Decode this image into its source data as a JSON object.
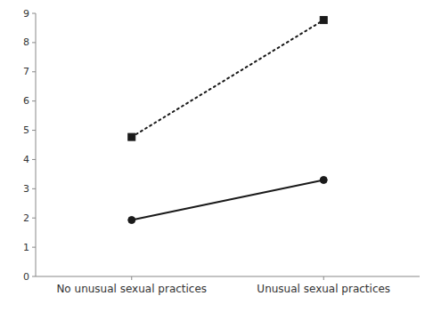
{
  "chart_data": {
    "type": "line",
    "categories": [
      "No unusual sexual practices",
      "Unusual sexual practices"
    ],
    "series": [
      {
        "color": "#1a1a1a",
        "line_style": "solid",
        "marker": "circle",
        "values": [
          1.93,
          3.3
        ]
      },
      {
        "color": "#1a1a1a",
        "line_style": "dotted",
        "marker": "square",
        "values": [
          4.77,
          8.77
        ]
      }
    ],
    "ylim": [
      0,
      9
    ],
    "yticks": [
      0,
      1,
      2,
      3,
      4,
      5,
      6,
      7,
      8,
      9
    ],
    "grid": false
  }
}
